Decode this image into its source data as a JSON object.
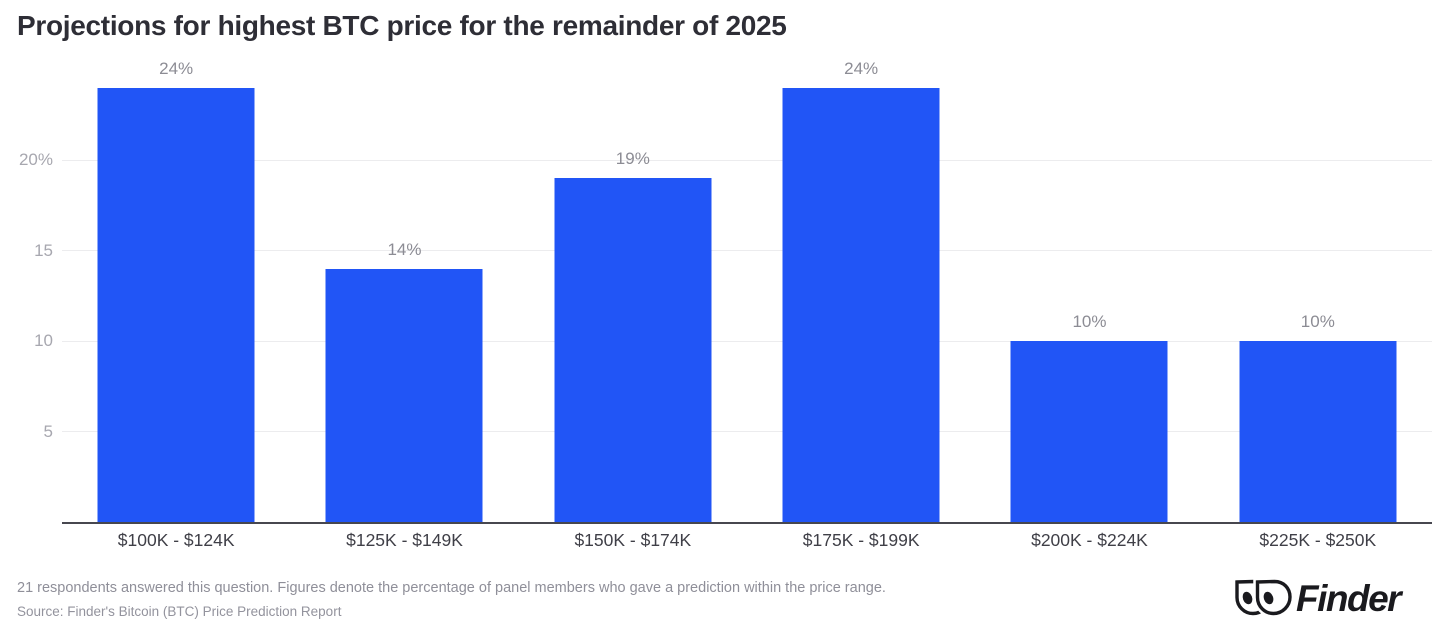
{
  "chart": {
    "title": "Projections for highest BTC price for the remainder of 2025"
  },
  "chart_data": {
    "type": "bar",
    "title": "Projections for highest BTC price for the remainder of 2025",
    "categories": [
      "$100K - $124K",
      "$125K - $149K",
      "$150K - $174K",
      "$175K - $199K",
      "$200K - $224K",
      "$225K - $250K"
    ],
    "values": [
      24,
      14,
      19,
      24,
      10,
      10
    ],
    "data_labels": [
      "24%",
      "14%",
      "19%",
      "24%",
      "10%",
      "10%"
    ],
    "xlabel": "",
    "ylabel": "",
    "ylim": [
      0,
      25
    ],
    "yticks": [
      {
        "value": 5,
        "label": "5"
      },
      {
        "value": 10,
        "label": "10"
      },
      {
        "value": 15,
        "label": "15"
      },
      {
        "value": 20,
        "label": "20%"
      }
    ],
    "grid": "horizontal-only",
    "legend": "none",
    "bar_color": "#2155f6"
  },
  "footer": {
    "note": "21 respondents answered this question. Figures denote the percentage of panel members who gave a prediction within the price range.",
    "source": "Source: Finder's Bitcoin (BTC) Price Prediction Report",
    "logo_text": "Finder"
  },
  "colors": {
    "bar": "#2155f6",
    "title_text": "#2e2e36",
    "tick_text": "#a7a7af",
    "value_label_text": "#8c8c94",
    "category_text": "#3f3f47",
    "gridline": "#ececee",
    "axis_line": "#47474f",
    "footer_text": "#8f8f99",
    "logo": "#1a1a1e",
    "background": "#ffffff"
  }
}
